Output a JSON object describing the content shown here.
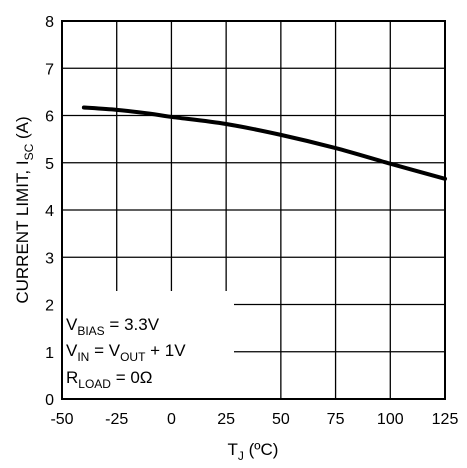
{
  "chart_data": {
    "type": "line",
    "title": "",
    "xlabel": {
      "main": "T",
      "sub": "J",
      "rest": " (ºC)"
    },
    "ylabel": {
      "main": "CURRENT LIMIT, I",
      "sub": "SC",
      "rest": " (A)"
    },
    "xlim": [
      -50,
      125
    ],
    "ylim": [
      0,
      8
    ],
    "xticks": [
      "-50",
      "-25",
      "0",
      "25",
      "50",
      "75",
      "100",
      "125"
    ],
    "yticks": [
      "0",
      "1",
      "2",
      "3",
      "4",
      "5",
      "6",
      "7",
      "8"
    ],
    "grid": true,
    "series": [
      {
        "x": [
          -40,
          -25,
          -10,
          0,
          25,
          50,
          75,
          100,
          125
        ],
        "y": [
          6.17,
          6.12,
          6.04,
          5.97,
          5.82,
          5.59,
          5.31,
          4.98,
          4.66
        ]
      }
    ],
    "annotations": [
      {
        "main": "V",
        "sub": "BIAS",
        "rest": " = 3.3V"
      },
      {
        "main": "V",
        "sub": "IN",
        "rest": " = V",
        "sub2": "OUT",
        "rest2": " + 1V"
      },
      {
        "main": "R",
        "sub": "LOAD",
        "rest": " = 0Ω"
      }
    ]
  }
}
